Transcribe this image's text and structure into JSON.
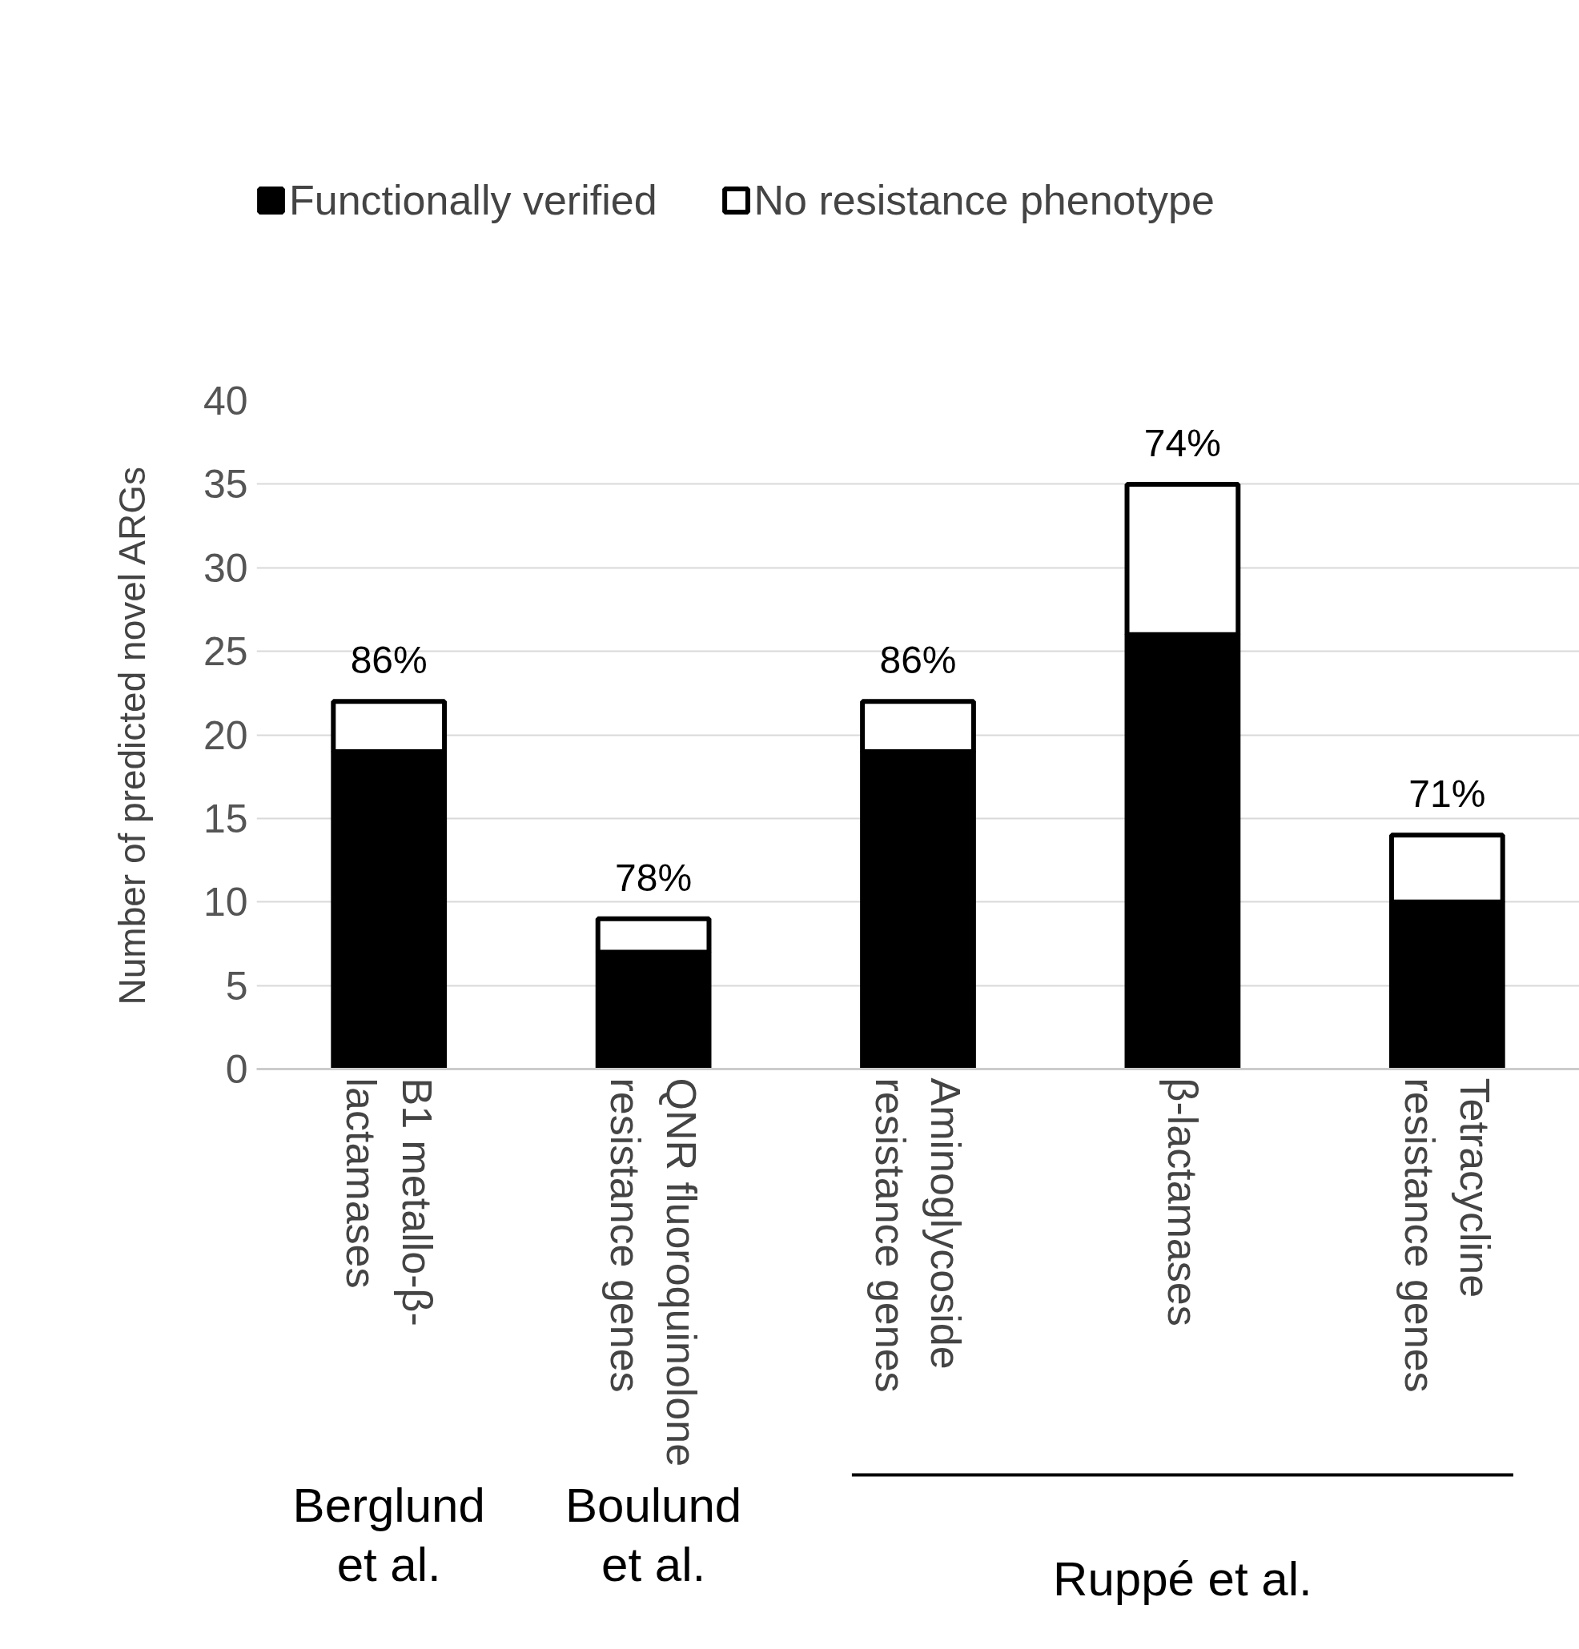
{
  "chart_data": {
    "type": "bar",
    "stacked": true,
    "ylabel": "Number of predicted novel ARGs",
    "categories": [
      "B1 metallo-β-lactamases",
      "QNR fluoroquinolone resistance genes",
      "Aminoglycoside resistance genes",
      "β-lactamases",
      "Tetracycline resistance genes"
    ],
    "series": [
      {
        "name": "Functionally verified",
        "color": "#000000",
        "values": [
          19,
          7,
          19,
          26,
          10
        ]
      },
      {
        "name": "No resistance phenotype",
        "color": "#ffffff",
        "values": [
          3,
          2,
          3,
          9,
          4
        ]
      }
    ],
    "ylim": [
      0,
      40
    ],
    "yticks": [
      0,
      5,
      10,
      15,
      20,
      25,
      30,
      35,
      40
    ],
    "grid": "y",
    "legend": "top",
    "annotations": [
      {
        "text": "86%",
        "x": "B1 metallo-β-lactamases",
        "y": 22
      },
      {
        "text": "78%",
        "x": "QNR fluoroquinolone resistance genes",
        "y": 9
      },
      {
        "text": "86%",
        "x": "Aminoglycoside resistance genes",
        "y": 22
      },
      {
        "text": "74%",
        "x": "β-lactamases",
        "y": 35
      },
      {
        "text": "71%",
        "x": "Tetracycline resistance genes",
        "y": 14
      },
      "Berglund et al.",
      "Boulund et al.",
      "Ruppé et al."
    ]
  }
}
